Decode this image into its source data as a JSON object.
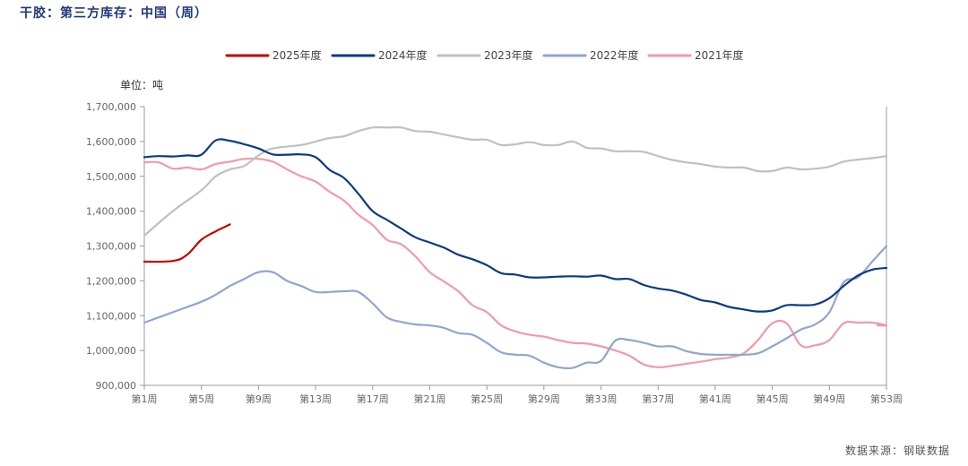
{
  "title": "干胶：第三方库存：中国（周）",
  "unit_label": "单位：吨",
  "source": "数据来源：钢联数据",
  "chart_data": {
    "type": "line",
    "y_ticks": [
      "900,000",
      "1,000,000",
      "1,100,000",
      "1,200,000",
      "1,300,000",
      "1,400,000",
      "1,500,000",
      "1,600,000",
      "1,700,000"
    ],
    "y_tick_values": [
      900000,
      1000000,
      1100000,
      1200000,
      1300000,
      1400000,
      1500000,
      1600000,
      1700000
    ],
    "x_ticks": [
      "第1周",
      "第5周",
      "第9周",
      "第13周",
      "第17周",
      "第21周",
      "第25周",
      "第29周",
      "第33周",
      "第37周",
      "第41周",
      "第45周",
      "第49周",
      "第53周"
    ],
    "x_tick_values": [
      1,
      5,
      9,
      13,
      17,
      21,
      25,
      29,
      33,
      37,
      41,
      45,
      49,
      53
    ],
    "ylim": [
      900000,
      1700000
    ],
    "xlim": [
      1,
      53
    ],
    "legend_position": "top",
    "series": [
      {
        "name": "2025年度",
        "color": "#c00000",
        "width": 2.2,
        "points": [
          [
            1,
            1255000
          ],
          [
            3,
            1257000
          ],
          [
            4,
            1275000
          ],
          [
            5,
            1318000
          ],
          [
            6,
            1342000
          ],
          [
            6.5,
            1352000
          ],
          [
            7,
            1362000
          ]
        ]
      },
      {
        "name": "2024年度",
        "color": "#0b3a82",
        "width": 2.2,
        "points": [
          [
            1,
            1555000
          ],
          [
            2,
            1558000
          ],
          [
            3,
            1557000
          ],
          [
            4,
            1560000
          ],
          [
            5,
            1562000
          ],
          [
            6,
            1603000
          ],
          [
            7,
            1602000
          ],
          [
            8,
            1592000
          ],
          [
            9,
            1580000
          ],
          [
            10,
            1563000
          ],
          [
            11,
            1562000
          ],
          [
            12,
            1563000
          ],
          [
            13,
            1555000
          ],
          [
            14,
            1518000
          ],
          [
            15,
            1495000
          ],
          [
            16,
            1450000
          ],
          [
            17,
            1400000
          ],
          [
            18,
            1375000
          ],
          [
            19,
            1350000
          ],
          [
            20,
            1325000
          ],
          [
            21,
            1310000
          ],
          [
            22,
            1295000
          ],
          [
            23,
            1275000
          ],
          [
            24,
            1262000
          ],
          [
            25,
            1245000
          ],
          [
            26,
            1222000
          ],
          [
            27,
            1218000
          ],
          [
            28,
            1210000
          ],
          [
            29,
            1210000
          ],
          [
            30,
            1212000
          ],
          [
            31,
            1213000
          ],
          [
            32,
            1212000
          ],
          [
            33,
            1215000
          ],
          [
            34,
            1205000
          ],
          [
            35,
            1205000
          ],
          [
            36,
            1188000
          ],
          [
            37,
            1178000
          ],
          [
            38,
            1172000
          ],
          [
            39,
            1160000
          ],
          [
            40,
            1145000
          ],
          [
            41,
            1138000
          ],
          [
            42,
            1125000
          ],
          [
            43,
            1118000
          ],
          [
            44,
            1112000
          ],
          [
            45,
            1115000
          ],
          [
            46,
            1130000
          ],
          [
            47,
            1130000
          ],
          [
            48,
            1132000
          ],
          [
            49,
            1150000
          ],
          [
            50,
            1185000
          ],
          [
            51,
            1215000
          ],
          [
            52,
            1232000
          ],
          [
            53,
            1237000
          ]
        ]
      },
      {
        "name": "2023年度",
        "color": "#c0c0c0",
        "width": 2.2,
        "points": [
          [
            1,
            1330000
          ],
          [
            3,
            1400000
          ],
          [
            5,
            1460000
          ],
          [
            6,
            1500000
          ],
          [
            7,
            1520000
          ],
          [
            8,
            1530000
          ],
          [
            9,
            1560000
          ],
          [
            10,
            1580000
          ],
          [
            12,
            1590000
          ],
          [
            13,
            1600000
          ],
          [
            14,
            1610000
          ],
          [
            15,
            1615000
          ],
          [
            16,
            1630000
          ],
          [
            17,
            1640000
          ],
          [
            18,
            1640000
          ],
          [
            19,
            1640000
          ],
          [
            20,
            1630000
          ],
          [
            21,
            1628000
          ],
          [
            22,
            1620000
          ],
          [
            23,
            1612000
          ],
          [
            24,
            1605000
          ],
          [
            25,
            1605000
          ],
          [
            26,
            1590000
          ],
          [
            27,
            1592000
          ],
          [
            28,
            1598000
          ],
          [
            29,
            1590000
          ],
          [
            30,
            1590000
          ],
          [
            31,
            1600000
          ],
          [
            32,
            1582000
          ],
          [
            33,
            1580000
          ],
          [
            34,
            1572000
          ],
          [
            35,
            1572000
          ],
          [
            36,
            1570000
          ],
          [
            37,
            1558000
          ],
          [
            38,
            1547000
          ],
          [
            39,
            1540000
          ],
          [
            40,
            1535000
          ],
          [
            41,
            1528000
          ],
          [
            42,
            1525000
          ],
          [
            43,
            1525000
          ],
          [
            44,
            1515000
          ],
          [
            45,
            1515000
          ],
          [
            46,
            1525000
          ],
          [
            47,
            1520000
          ],
          [
            48,
            1522000
          ],
          [
            49,
            1528000
          ],
          [
            50,
            1542000
          ],
          [
            51,
            1548000
          ],
          [
            52,
            1552000
          ],
          [
            53,
            1558000
          ]
        ]
      },
      {
        "name": "2022年度",
        "color": "#8fa6cf",
        "width": 2.2,
        "points": [
          [
            1,
            1080000
          ],
          [
            3,
            1110000
          ],
          [
            5,
            1140000
          ],
          [
            6,
            1160000
          ],
          [
            7,
            1185000
          ],
          [
            8,
            1205000
          ],
          [
            9,
            1225000
          ],
          [
            10,
            1225000
          ],
          [
            11,
            1200000
          ],
          [
            12,
            1185000
          ],
          [
            13,
            1168000
          ],
          [
            14,
            1168000
          ],
          [
            15,
            1170000
          ],
          [
            16,
            1168000
          ],
          [
            17,
            1135000
          ],
          [
            18,
            1095000
          ],
          [
            19,
            1082000
          ],
          [
            20,
            1075000
          ],
          [
            21,
            1072000
          ],
          [
            22,
            1065000
          ],
          [
            23,
            1050000
          ],
          [
            24,
            1045000
          ],
          [
            25,
            1022000
          ],
          [
            26,
            995000
          ],
          [
            27,
            988000
          ],
          [
            28,
            985000
          ],
          [
            29,
            965000
          ],
          [
            30,
            952000
          ],
          [
            31,
            950000
          ],
          [
            32,
            965000
          ],
          [
            33,
            970000
          ],
          [
            34,
            1028000
          ],
          [
            35,
            1030000
          ],
          [
            36,
            1022000
          ],
          [
            37,
            1012000
          ],
          [
            38,
            1012000
          ],
          [
            39,
            998000
          ],
          [
            40,
            990000
          ],
          [
            41,
            988000
          ],
          [
            42,
            988000
          ],
          [
            43,
            988000
          ],
          [
            44,
            992000
          ],
          [
            45,
            1012000
          ],
          [
            46,
            1035000
          ],
          [
            47,
            1060000
          ],
          [
            48,
            1075000
          ],
          [
            49,
            1110000
          ],
          [
            50,
            1195000
          ],
          [
            51,
            1210000
          ],
          [
            52,
            1255000
          ],
          [
            53,
            1300000
          ]
        ]
      },
      {
        "name": "2021年度",
        "color": "#f29aa6",
        "width": 2.2,
        "points": [
          [
            1,
            1540000
          ],
          [
            2,
            1540000
          ],
          [
            3,
            1522000
          ],
          [
            4,
            1525000
          ],
          [
            5,
            1520000
          ],
          [
            6,
            1535000
          ],
          [
            7,
            1542000
          ],
          [
            8,
            1550000
          ],
          [
            9,
            1550000
          ],
          [
            10,
            1542000
          ],
          [
            11,
            1520000
          ],
          [
            12,
            1500000
          ],
          [
            13,
            1485000
          ],
          [
            14,
            1455000
          ],
          [
            15,
            1430000
          ],
          [
            16,
            1390000
          ],
          [
            17,
            1360000
          ],
          [
            18,
            1318000
          ],
          [
            19,
            1305000
          ],
          [
            20,
            1270000
          ],
          [
            21,
            1225000
          ],
          [
            22,
            1198000
          ],
          [
            23,
            1170000
          ],
          [
            24,
            1130000
          ],
          [
            25,
            1110000
          ],
          [
            26,
            1072000
          ],
          [
            27,
            1055000
          ],
          [
            28,
            1045000
          ],
          [
            29,
            1040000
          ],
          [
            30,
            1030000
          ],
          [
            31,
            1022000
          ],
          [
            32,
            1020000
          ],
          [
            33,
            1012000
          ],
          [
            34,
            1000000
          ],
          [
            35,
            985000
          ],
          [
            36,
            960000
          ],
          [
            37,
            952000
          ],
          [
            38,
            956000
          ],
          [
            39,
            962000
          ],
          [
            40,
            968000
          ],
          [
            41,
            975000
          ],
          [
            42,
            980000
          ],
          [
            43,
            992000
          ],
          [
            44,
            1030000
          ],
          [
            45,
            1078000
          ],
          [
            46,
            1078000
          ],
          [
            47,
            1015000
          ],
          [
            48,
            1015000
          ],
          [
            49,
            1030000
          ],
          [
            50,
            1078000
          ],
          [
            51,
            1080000
          ],
          [
            52,
            1080000
          ],
          [
            53,
            1072000
          ],
          [
            54,
            1072000
          ]
        ]
      }
    ]
  }
}
